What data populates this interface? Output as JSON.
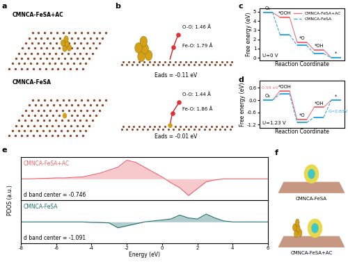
{
  "chart_data": [
    {
      "panel_label": "c",
      "type": "line",
      "xlabel": "Reaction Coordinate",
      "ylabel": "Free energy (eV)",
      "categories": [
        "O₂",
        "*OOH",
        "*O",
        "*OH",
        "*"
      ],
      "ylim": [
        -0.3,
        5.4
      ],
      "yticks": [
        0,
        1,
        2,
        3,
        4,
        5
      ],
      "tick_labels": "y",
      "legend": "upper right",
      "annotations": [
        "U=0 V"
      ],
      "series": [
        {
          "name": "CMNCA-FeSA+AC",
          "color": "#f07078",
          "line_style": "solid",
          "values": [
            4.92,
            4.4,
            1.7,
            0.85,
            0
          ]
        },
        {
          "name": "CMNCA-FeSA",
          "color": "#35a8e0",
          "line_style": "dashed",
          "values": [
            4.92,
            2.5,
            1.35,
            0.45,
            0
          ]
        }
      ]
    },
    {
      "panel_label": "d",
      "type": "line",
      "xlabel": "Reaction Coordinate",
      "ylabel": "Free energy (eV)",
      "categories": [
        "O₂",
        "*OOH",
        "*O",
        "*OH",
        "*"
      ],
      "ylim": [
        -1.35,
        0.95
      ],
      "yticks": [
        -1.2,
        -0.6,
        {
          "value": 0,
          "label": "0.0"
        },
        0.6
      ],
      "tick_labels": "y",
      "annotations": [
        "U=1.23 V"
      ],
      "series": [
        {
          "color": "#f07078",
          "line_style": "solid",
          "values": [
            0.0,
            0.45,
            -0.95,
            -0.35,
            0.0
          ],
          "annotation": "0.59 eV"
        },
        {
          "color": "#35a8e0",
          "line_style": "dashed",
          "values": [
            0.0,
            0.3,
            -1.1,
            -0.83,
            0.0
          ],
          "annotation": "G=0.83V"
        }
      ]
    },
    {
      "panel_label": "e",
      "type": "line",
      "title": "CMNCA-FeSA+AC",
      "annotations": [
        "d band center = -0.746"
      ],
      "ylabel": "PDOS (a.u.)",
      "tick_labels": false,
      "x": [
        -8,
        -7.5,
        -7,
        -6.5,
        -6,
        -5.5,
        -5,
        -4.5,
        -4,
        -3.5,
        -3,
        -2.5,
        -2,
        -1.5,
        -1,
        -0.5,
        0,
        0.5,
        1,
        1.5,
        2,
        2.5,
        3,
        3.5,
        4,
        4.5,
        5,
        5.5,
        6
      ],
      "xlim": [
        -8,
        6
      ],
      "ylim": [
        -1.1,
        1.1
      ],
      "series": [
        {
          "color": "#e8656f",
          "values": [
            0,
            0,
            0.02,
            0.03,
            0.05,
            0.05,
            0.08,
            0.1,
            0.2,
            0.3,
            0.45,
            0.6,
            0.95,
            0.85,
            0.6,
            0.35,
            0.1,
            -0.2,
            -0.45,
            -0.85,
            -0.5,
            -0.15,
            -0.05,
            0,
            0,
            0,
            0,
            0,
            0
          ]
        }
      ]
    },
    {
      "type": "line",
      "title": "CMNCA-FeSA",
      "annotations": [
        "d band center = -1.091"
      ],
      "xlabel": "Energy (eV)",
      "tick_labels": "x",
      "x": [
        -8,
        -7.5,
        -7,
        -6.5,
        -6,
        -5.5,
        -5,
        -4.5,
        -4,
        -3.5,
        -3,
        -2.5,
        -2,
        -1.5,
        -1,
        -0.5,
        0,
        0.5,
        1,
        1.5,
        2,
        2.5,
        3,
        3.5,
        4,
        4.5,
        5,
        5.5,
        6
      ],
      "xlim": [
        -8,
        6
      ],
      "xticks": [
        -8,
        -6,
        -4,
        -2,
        0,
        2,
        4,
        6
      ],
      "ylim": [
        -1.1,
        1.1
      ],
      "series": [
        {
          "color": "#1f6f6f",
          "values": [
            0,
            0,
            0,
            0,
            0,
            0,
            0,
            0,
            -0.02,
            -0.03,
            -0.05,
            -0.3,
            -0.2,
            -0.1,
            0,
            0.05,
            0.1,
            0.15,
            0.35,
            0.2,
            0.15,
            0.4,
            0.2,
            0.05,
            0,
            0,
            0,
            0,
            0
          ]
        }
      ]
    }
  ],
  "diagram": {
    "panel_a": {
      "label": "a",
      "structures": [
        "CMNCA-FeSA+AC",
        "CMNCA-FeSA"
      ]
    },
    "panel_b": {
      "label": "b",
      "structures": [
        {
          "O-O": "O-O: 1.46 Å",
          "Fe-O": "Fe-O: 1.79 Å",
          "energy": "Eads = -0.11 eV"
        },
        {
          "O-O": "O-O: 1.44 Å",
          "Fe-O": "Fe-O: 1.86 Å",
          "energy": "Eads = -0.01 eV"
        }
      ]
    },
    "panel_f": {
      "label": "f",
      "structures": [
        "CMNCA-FeSA",
        "CMNCA-FeSA+AC"
      ]
    }
  }
}
